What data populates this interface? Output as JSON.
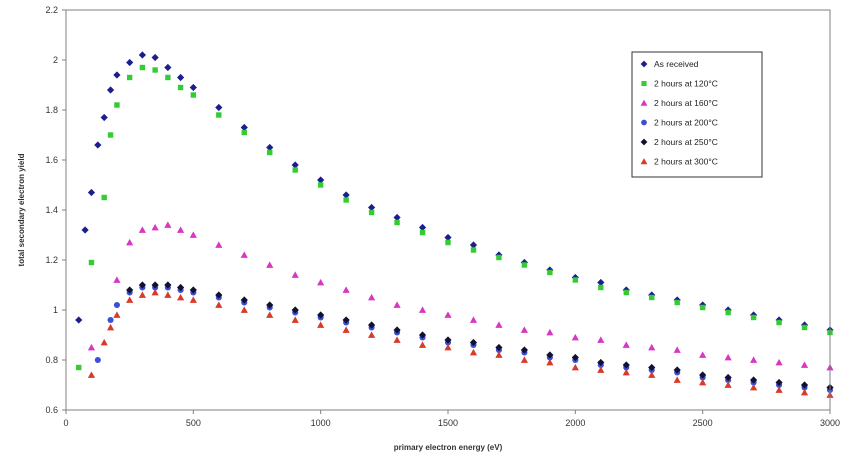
{
  "chart_data": {
    "type": "scatter",
    "title": "",
    "xlabel": "primary electron energy (eV)",
    "ylabel": "total secondary electron yield",
    "xlim": [
      0,
      3000
    ],
    "ylim": [
      0.6,
      2.2
    ],
    "xticks": [
      "0",
      "500",
      "1000",
      "1500",
      "2000",
      "2500",
      "3000"
    ],
    "yticks": [
      "0.6",
      "0.8",
      "1",
      "1.2",
      "1.4",
      "1.6",
      "1.8",
      "2",
      "2.2"
    ],
    "grid": false,
    "legend_position": "top-right",
    "series": [
      {
        "name": "As received",
        "color": "#1a1f8c",
        "marker": "diamond",
        "x": [
          50,
          75,
          100,
          125,
          150,
          175,
          200,
          250,
          300,
          350,
          400,
          450,
          500,
          600,
          700,
          800,
          900,
          1000,
          1100,
          1200,
          1300,
          1400,
          1500,
          1600,
          1700,
          1800,
          1900,
          2000,
          2100,
          2200,
          2300,
          2400,
          2500,
          2600,
          2700,
          2800,
          2900,
          3000
        ],
        "y": [
          0.96,
          1.32,
          1.47,
          1.66,
          1.77,
          1.88,
          1.94,
          1.99,
          2.02,
          2.01,
          1.97,
          1.93,
          1.89,
          1.81,
          1.73,
          1.65,
          1.58,
          1.52,
          1.46,
          1.41,
          1.37,
          1.33,
          1.29,
          1.26,
          1.22,
          1.19,
          1.16,
          1.13,
          1.11,
          1.08,
          1.06,
          1.04,
          1.02,
          1.0,
          0.98,
          0.96,
          0.94,
          0.92
        ]
      },
      {
        "name": "2 hours at 120°C",
        "color": "#33cc33",
        "marker": "square",
        "x": [
          50,
          100,
          150,
          175,
          200,
          250,
          300,
          350,
          400,
          450,
          500,
          600,
          700,
          800,
          900,
          1000,
          1100,
          1200,
          1300,
          1400,
          1500,
          1600,
          1700,
          1800,
          1900,
          2000,
          2100,
          2200,
          2300,
          2400,
          2500,
          2600,
          2700,
          2800,
          2900,
          3000
        ],
        "y": [
          0.77,
          1.19,
          1.45,
          1.7,
          1.82,
          1.93,
          1.97,
          1.96,
          1.93,
          1.89,
          1.86,
          1.78,
          1.71,
          1.63,
          1.56,
          1.5,
          1.44,
          1.39,
          1.35,
          1.31,
          1.27,
          1.24,
          1.21,
          1.18,
          1.15,
          1.12,
          1.09,
          1.07,
          1.05,
          1.03,
          1.01,
          0.99,
          0.97,
          0.95,
          0.93,
          0.91
        ]
      },
      {
        "name": "2 hours at 160°C",
        "color": "#d936c4",
        "marker": "triangle",
        "x": [
          100,
          200,
          250,
          300,
          350,
          400,
          450,
          500,
          600,
          700,
          800,
          900,
          1000,
          1100,
          1200,
          1300,
          1400,
          1500,
          1600,
          1700,
          1800,
          1900,
          2000,
          2100,
          2200,
          2300,
          2400,
          2500,
          2600,
          2700,
          2800,
          2900,
          3000
        ],
        "y": [
          0.85,
          1.12,
          1.27,
          1.32,
          1.33,
          1.34,
          1.32,
          1.3,
          1.26,
          1.22,
          1.18,
          1.14,
          1.11,
          1.08,
          1.05,
          1.02,
          1.0,
          0.98,
          0.96,
          0.94,
          0.92,
          0.91,
          0.89,
          0.88,
          0.86,
          0.85,
          0.84,
          0.82,
          0.81,
          0.8,
          0.79,
          0.78,
          0.77
        ]
      },
      {
        "name": "2 hours at 200°C",
        "color": "#3b4fd8",
        "marker": "circle",
        "x": [
          125,
          175,
          200,
          250,
          300,
          350,
          400,
          450,
          500,
          600,
          700,
          800,
          900,
          1000,
          1100,
          1200,
          1300,
          1400,
          1500,
          1600,
          1700,
          1800,
          1900,
          2000,
          2100,
          2200,
          2300,
          2400,
          2500,
          2600,
          2700,
          2800,
          2900,
          3000
        ],
        "y": [
          0.8,
          0.96,
          1.02,
          1.07,
          1.09,
          1.09,
          1.09,
          1.08,
          1.07,
          1.05,
          1.03,
          1.01,
          0.99,
          0.97,
          0.95,
          0.93,
          0.91,
          0.89,
          0.87,
          0.86,
          0.84,
          0.83,
          0.81,
          0.8,
          0.78,
          0.77,
          0.76,
          0.75,
          0.73,
          0.72,
          0.71,
          0.7,
          0.69,
          0.68
        ]
      },
      {
        "name": "2 hours at 250°C",
        "color": "#111133",
        "marker": "diamond",
        "x": [
          250,
          300,
          350,
          400,
          450,
          500,
          600,
          700,
          800,
          900,
          1000,
          1100,
          1200,
          1300,
          1400,
          1500,
          1600,
          1700,
          1800,
          1900,
          2000,
          2100,
          2200,
          2300,
          2400,
          2500,
          2600,
          2700,
          2800,
          2900,
          3000
        ],
        "y": [
          1.08,
          1.1,
          1.1,
          1.1,
          1.09,
          1.08,
          1.06,
          1.04,
          1.02,
          1.0,
          0.98,
          0.96,
          0.94,
          0.92,
          0.9,
          0.88,
          0.87,
          0.85,
          0.84,
          0.82,
          0.81,
          0.79,
          0.78,
          0.77,
          0.76,
          0.74,
          0.73,
          0.72,
          0.71,
          0.7,
          0.69
        ]
      },
      {
        "name": "2 hours at 300°C",
        "color": "#d93a2a",
        "marker": "triangle",
        "x": [
          100,
          150,
          175,
          200,
          250,
          300,
          350,
          400,
          450,
          500,
          600,
          700,
          800,
          900,
          1000,
          1100,
          1200,
          1300,
          1400,
          1500,
          1600,
          1700,
          1800,
          1900,
          2000,
          2100,
          2200,
          2300,
          2400,
          2500,
          2600,
          2700,
          2800,
          2900,
          3000
        ],
        "y": [
          0.74,
          0.87,
          0.93,
          0.98,
          1.04,
          1.06,
          1.07,
          1.06,
          1.05,
          1.04,
          1.02,
          1.0,
          0.98,
          0.96,
          0.94,
          0.92,
          0.9,
          0.88,
          0.86,
          0.85,
          0.83,
          0.82,
          0.8,
          0.79,
          0.77,
          0.76,
          0.75,
          0.74,
          0.72,
          0.71,
          0.7,
          0.69,
          0.68,
          0.67,
          0.66
        ]
      }
    ]
  }
}
